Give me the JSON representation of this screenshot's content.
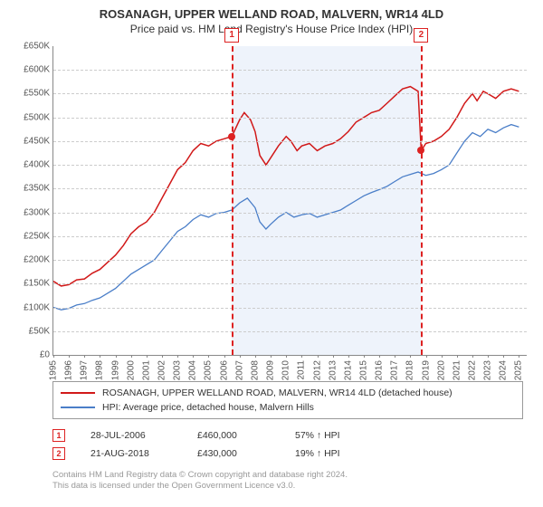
{
  "title": "ROSANAGH, UPPER WELLAND ROAD, MALVERN, WR14 4LD",
  "subtitle": "Price paid vs. HM Land Registry's House Price Index (HPI)",
  "chart": {
    "type": "line",
    "background_color": "#ffffff",
    "grid_color": "#cccccc",
    "axis_color": "#888888",
    "shaded_band": {
      "start_year": 2006.5,
      "end_year": 2018.7,
      "fill": "#eef3fb"
    },
    "x": {
      "min": 1995,
      "max": 2025.5,
      "ticks": [
        1995,
        1996,
        1997,
        1998,
        1999,
        2000,
        2001,
        2002,
        2003,
        2004,
        2005,
        2006,
        2007,
        2008,
        2009,
        2010,
        2011,
        2012,
        2013,
        2014,
        2015,
        2016,
        2017,
        2018,
        2019,
        2020,
        2021,
        2022,
        2023,
        2024,
        2025
      ],
      "label_fontsize": 10
    },
    "y": {
      "min": 0,
      "max": 650000,
      "tick_step": 50000,
      "prefix": "£",
      "suffix": "K",
      "divisor": 1000,
      "label_fontsize": 10
    },
    "series": [
      {
        "name": "ROSANAGH, UPPER WELLAND ROAD, MALVERN, WR14 4LD (detached house)",
        "color": "#d11919",
        "line_width": 1.5,
        "points": [
          [
            1995,
            155000
          ],
          [
            1995.5,
            145000
          ],
          [
            1996,
            148000
          ],
          [
            1996.5,
            158000
          ],
          [
            1997,
            160000
          ],
          [
            1997.5,
            172000
          ],
          [
            1998,
            180000
          ],
          [
            1998.5,
            195000
          ],
          [
            1999,
            210000
          ],
          [
            1999.5,
            230000
          ],
          [
            2000,
            255000
          ],
          [
            2000.5,
            270000
          ],
          [
            2001,
            280000
          ],
          [
            2001.5,
            300000
          ],
          [
            2002,
            330000
          ],
          [
            2002.5,
            360000
          ],
          [
            2003,
            390000
          ],
          [
            2003.5,
            405000
          ],
          [
            2004,
            430000
          ],
          [
            2004.5,
            445000
          ],
          [
            2005,
            440000
          ],
          [
            2005.5,
            450000
          ],
          [
            2006,
            455000
          ],
          [
            2006.5,
            460000
          ],
          [
            2007,
            495000
          ],
          [
            2007.3,
            510000
          ],
          [
            2007.7,
            495000
          ],
          [
            2008,
            470000
          ],
          [
            2008.3,
            420000
          ],
          [
            2008.7,
            400000
          ],
          [
            2009,
            415000
          ],
          [
            2009.5,
            440000
          ],
          [
            2010,
            460000
          ],
          [
            2010.3,
            450000
          ],
          [
            2010.7,
            430000
          ],
          [
            2011,
            440000
          ],
          [
            2011.5,
            445000
          ],
          [
            2012,
            430000
          ],
          [
            2012.5,
            440000
          ],
          [
            2013,
            445000
          ],
          [
            2013.5,
            455000
          ],
          [
            2014,
            470000
          ],
          [
            2014.5,
            490000
          ],
          [
            2015,
            500000
          ],
          [
            2015.5,
            510000
          ],
          [
            2016,
            515000
          ],
          [
            2016.5,
            530000
          ],
          [
            2017,
            545000
          ],
          [
            2017.5,
            560000
          ],
          [
            2018,
            565000
          ],
          [
            2018.5,
            555000
          ],
          [
            2018.7,
            430000
          ],
          [
            2019,
            445000
          ],
          [
            2019.5,
            450000
          ],
          [
            2020,
            460000
          ],
          [
            2020.5,
            475000
          ],
          [
            2021,
            500000
          ],
          [
            2021.5,
            530000
          ],
          [
            2022,
            550000
          ],
          [
            2022.3,
            535000
          ],
          [
            2022.7,
            555000
          ],
          [
            2023,
            550000
          ],
          [
            2023.5,
            540000
          ],
          [
            2024,
            555000
          ],
          [
            2024.5,
            560000
          ],
          [
            2025,
            555000
          ]
        ]
      },
      {
        "name": "HPI: Average price, detached house, Malvern Hills",
        "color": "#4a7ec8",
        "line_width": 1.3,
        "points": [
          [
            1995,
            100000
          ],
          [
            1995.5,
            95000
          ],
          [
            1996,
            98000
          ],
          [
            1996.5,
            105000
          ],
          [
            1997,
            108000
          ],
          [
            1997.5,
            115000
          ],
          [
            1998,
            120000
          ],
          [
            1998.5,
            130000
          ],
          [
            1999,
            140000
          ],
          [
            1999.5,
            155000
          ],
          [
            2000,
            170000
          ],
          [
            2000.5,
            180000
          ],
          [
            2001,
            190000
          ],
          [
            2001.5,
            200000
          ],
          [
            2002,
            220000
          ],
          [
            2002.5,
            240000
          ],
          [
            2003,
            260000
          ],
          [
            2003.5,
            270000
          ],
          [
            2004,
            285000
          ],
          [
            2004.5,
            295000
          ],
          [
            2005,
            290000
          ],
          [
            2005.5,
            298000
          ],
          [
            2006,
            300000
          ],
          [
            2006.5,
            305000
          ],
          [
            2007,
            320000
          ],
          [
            2007.5,
            330000
          ],
          [
            2008,
            310000
          ],
          [
            2008.3,
            280000
          ],
          [
            2008.7,
            265000
          ],
          [
            2009,
            275000
          ],
          [
            2009.5,
            290000
          ],
          [
            2010,
            300000
          ],
          [
            2010.5,
            290000
          ],
          [
            2011,
            295000
          ],
          [
            2011.5,
            298000
          ],
          [
            2012,
            290000
          ],
          [
            2012.5,
            295000
          ],
          [
            2013,
            300000
          ],
          [
            2013.5,
            305000
          ],
          [
            2014,
            315000
          ],
          [
            2014.5,
            325000
          ],
          [
            2015,
            335000
          ],
          [
            2015.5,
            342000
          ],
          [
            2016,
            348000
          ],
          [
            2016.5,
            355000
          ],
          [
            2017,
            365000
          ],
          [
            2017.5,
            375000
          ],
          [
            2018,
            380000
          ],
          [
            2018.5,
            385000
          ],
          [
            2019,
            378000
          ],
          [
            2019.5,
            382000
          ],
          [
            2020,
            390000
          ],
          [
            2020.5,
            400000
          ],
          [
            2021,
            425000
          ],
          [
            2021.5,
            450000
          ],
          [
            2022,
            468000
          ],
          [
            2022.5,
            460000
          ],
          [
            2023,
            475000
          ],
          [
            2023.5,
            468000
          ],
          [
            2024,
            478000
          ],
          [
            2024.5,
            485000
          ],
          [
            2025,
            480000
          ]
        ]
      }
    ],
    "sale_markers": [
      {
        "id": "1",
        "year": 2006.5,
        "price": 460000
      },
      {
        "id": "2",
        "year": 2018.7,
        "price": 430000
      }
    ]
  },
  "legend": {
    "border_color": "#999999",
    "series1": "ROSANAGH, UPPER WELLAND ROAD, MALVERN, WR14 4LD (detached house)",
    "series2": "HPI: Average price, detached house, Malvern Hills"
  },
  "sales": [
    {
      "id": "1",
      "date": "28-JUL-2006",
      "price": "£460,000",
      "pct": "57%"
    },
    {
      "id": "2",
      "date": "21-AUG-2018",
      "price": "£430,000",
      "pct": "19%"
    }
  ],
  "footer": {
    "line1": "Contains HM Land Registry data © Crown copyright and database right 2024.",
    "line2": "This data is licensed under the Open Government Licence v3.0."
  }
}
